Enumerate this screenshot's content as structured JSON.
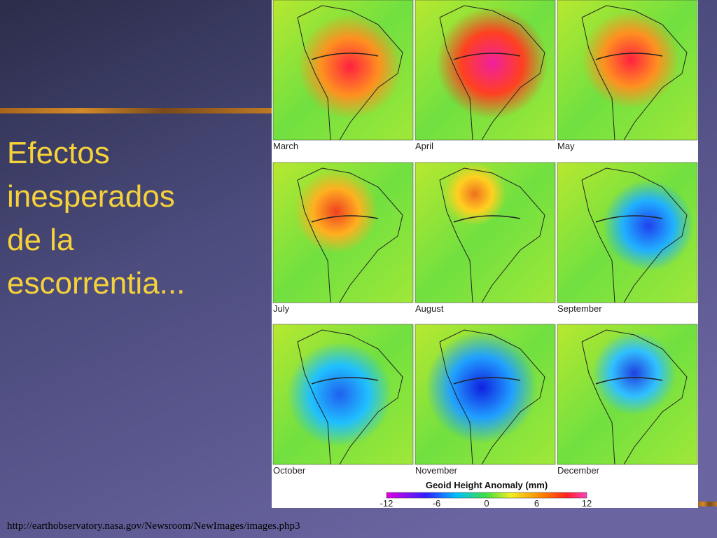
{
  "slide": {
    "title_lines": [
      "Efectos",
      "inesperados",
      "de la",
      "escorrentia..."
    ],
    "panels": [
      "March",
      "April",
      "May",
      "July",
      "August",
      "September",
      "October",
      "November",
      "December"
    ],
    "colorbar": {
      "title": "Geoid Height Anomaly (mm)",
      "ticks": [
        -12,
        -6,
        0,
        6,
        12
      ]
    },
    "source": "http://earthobservatory.nasa.gov/Newsroom/NewImages/images.php3"
  }
}
